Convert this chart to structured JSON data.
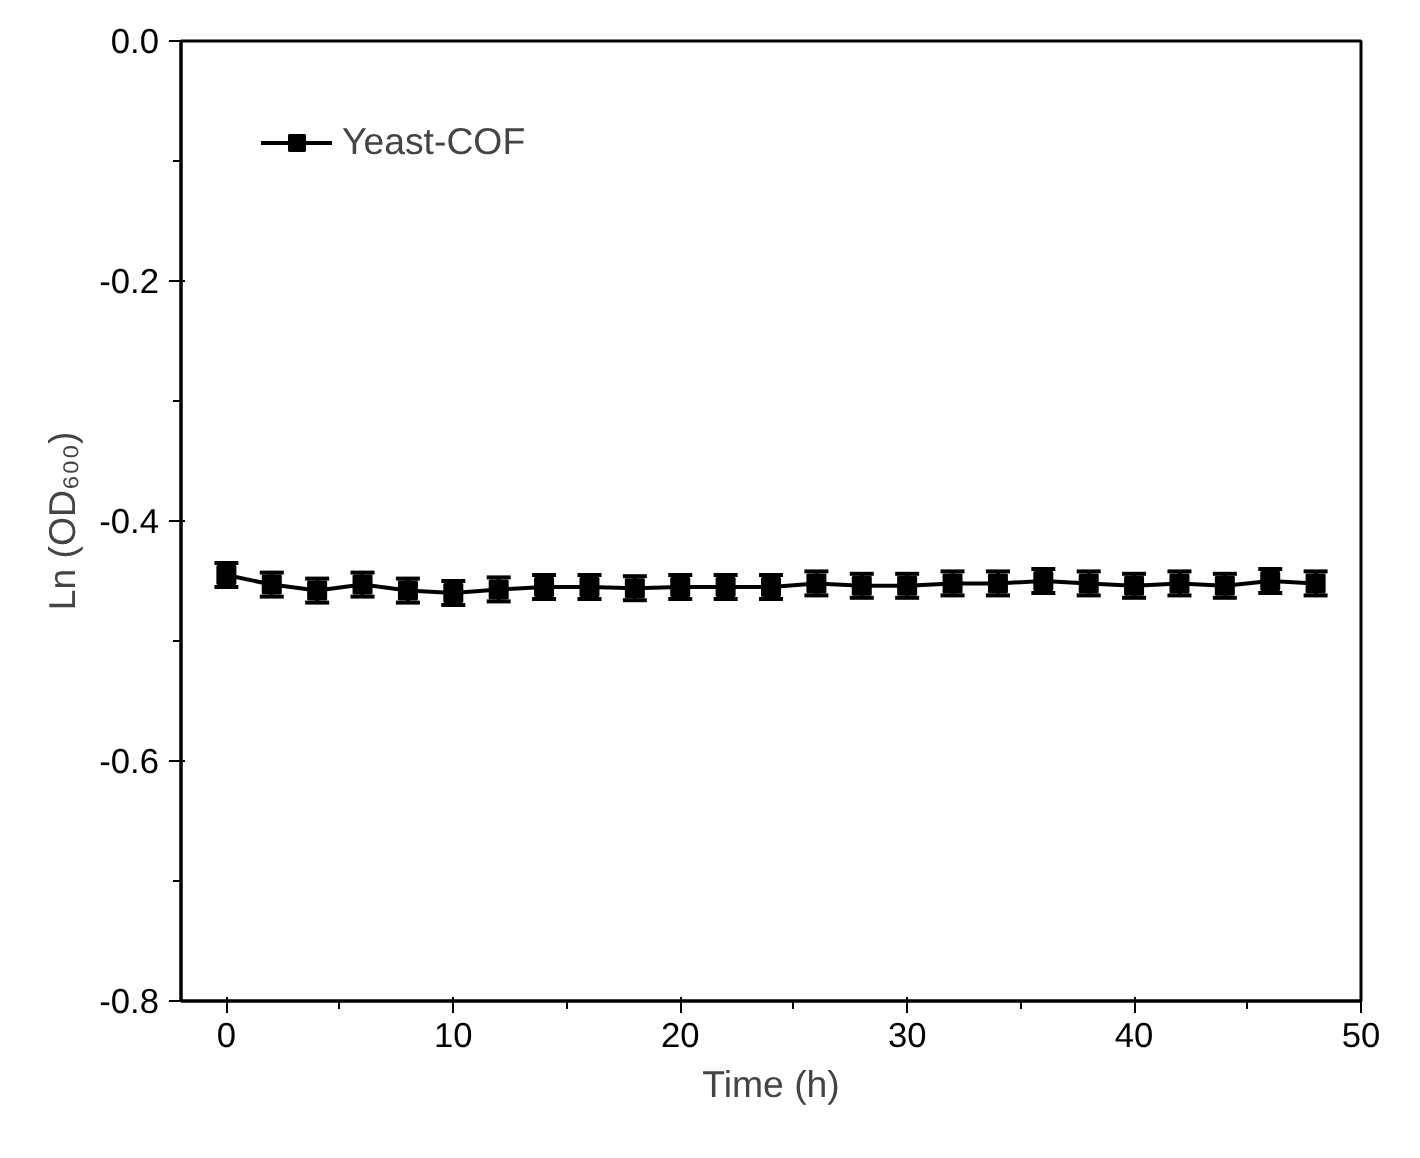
{
  "chart_data": {
    "type": "line",
    "xlabel": "Time (h)",
    "ylabel": "Ln (OD₆₀₀)",
    "x": [
      0,
      2,
      4,
      6,
      8,
      10,
      12,
      14,
      16,
      18,
      20,
      22,
      24,
      26,
      28,
      30,
      32,
      34,
      36,
      38,
      40,
      42,
      44,
      46,
      48
    ],
    "series": [
      {
        "name": "Yeast-COF",
        "color": "#000000",
        "values": [
          -0.445,
          -0.453,
          -0.458,
          -0.453,
          -0.458,
          -0.46,
          -0.457,
          -0.455,
          -0.455,
          -0.456,
          -0.455,
          -0.455,
          -0.455,
          -0.452,
          -0.454,
          -0.454,
          -0.452,
          -0.452,
          -0.45,
          -0.452,
          -0.454,
          -0.452,
          -0.454,
          -0.45,
          -0.452
        ],
        "errors": [
          0.01,
          0.01,
          0.01,
          0.01,
          0.01,
          0.01,
          0.01,
          0.01,
          0.01,
          0.01,
          0.01,
          0.01,
          0.01,
          0.01,
          0.01,
          0.01,
          0.01,
          0.01,
          0.01,
          0.01,
          0.01,
          0.01,
          0.01,
          0.01,
          0.01
        ]
      }
    ],
    "xlim": [
      -2,
      50
    ],
    "xticks": [
      0,
      10,
      20,
      30,
      40,
      50
    ],
    "ylim": [
      -0.8,
      0.0
    ],
    "yticks": [
      {
        "value": -0.8,
        "label": "-0.8"
      },
      {
        "value": -0.6,
        "label": "-0.6"
      },
      {
        "value": -0.4,
        "label": "-0.4"
      },
      {
        "value": -0.2,
        "label": "-0.2"
      },
      {
        "value": 0.0,
        "label": "0.0"
      }
    ],
    "grid": false,
    "legend": "top left",
    "marker": "square",
    "line_style": "solid"
  }
}
